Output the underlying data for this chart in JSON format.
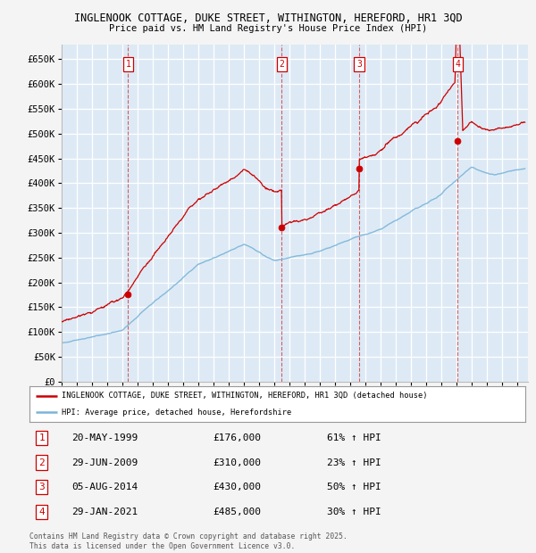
{
  "title1": "INGLENOOK COTTAGE, DUKE STREET, WITHINGTON, HEREFORD, HR1 3QD",
  "title2": "Price paid vs. HM Land Registry's House Price Index (HPI)",
  "background_color": "#ddeaf5",
  "ylim": [
    0,
    680000
  ],
  "yticks": [
    0,
    50000,
    100000,
    150000,
    200000,
    250000,
    300000,
    350000,
    400000,
    450000,
    500000,
    550000,
    600000,
    650000
  ],
  "ytick_labels": [
    "£0",
    "£50K",
    "£100K",
    "£150K",
    "£200K",
    "£250K",
    "£300K",
    "£350K",
    "£400K",
    "£450K",
    "£500K",
    "£550K",
    "£600K",
    "£650K"
  ],
  "sales_t": [
    1999.38,
    2009.49,
    2014.59,
    2021.08
  ],
  "sales_p": [
    176000,
    310000,
    430000,
    485000
  ],
  "sale_labels": [
    "1",
    "2",
    "3",
    "4"
  ],
  "sale_hpi_pcts": [
    "61% ↑ HPI",
    "23% ↑ HPI",
    "50% ↑ HPI",
    "30% ↑ HPI"
  ],
  "sale_date_strs": [
    "20-MAY-1999",
    "29-JUN-2009",
    "05-AUG-2014",
    "29-JAN-2021"
  ],
  "sale_price_strs": [
    "£176,000",
    "£310,000",
    "£430,000",
    "£485,000"
  ],
  "hpi_color": "#7ab4d8",
  "prop_color": "#cc0000",
  "legend_label_property": "INGLENOOK COTTAGE, DUKE STREET, WITHINGTON, HEREFORD, HR1 3QD (detached house)",
  "legend_label_hpi": "HPI: Average price, detached house, Herefordshire",
  "footnote": "Contains HM Land Registry data © Crown copyright and database right 2025.\nThis data is licensed under the Open Government Licence v3.0."
}
